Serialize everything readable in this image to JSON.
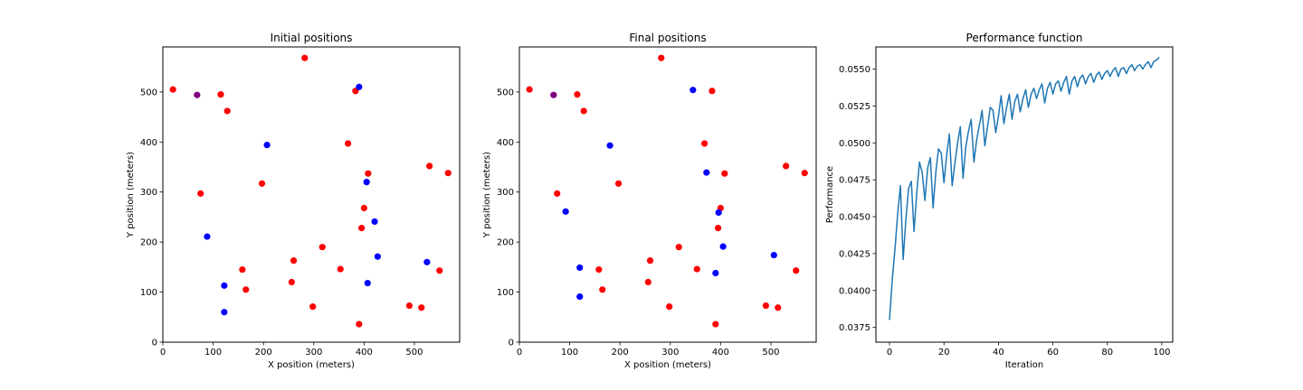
{
  "chart_data": [
    {
      "type": "scatter",
      "title": "Initial positions",
      "xlabel": "X position (meters)",
      "ylabel": "Y position (meters)",
      "xlim": [
        0,
        590
      ],
      "ylim": [
        0,
        590
      ],
      "xticks": [
        0,
        100,
        200,
        300,
        400,
        500
      ],
      "yticks": [
        0,
        100,
        200,
        300,
        400,
        500
      ],
      "grid": false,
      "series": [
        {
          "color": "#ff0000",
          "points": [
            [
              20,
              505
            ],
            [
              115,
              495
            ],
            [
              128,
              462
            ],
            [
              282,
              568
            ],
            [
              383,
              502
            ],
            [
              368,
              397
            ],
            [
              408,
              337
            ],
            [
              530,
              352
            ],
            [
              567,
              338
            ],
            [
              75,
              297
            ],
            [
              197,
              317
            ],
            [
              400,
              268
            ],
            [
              395,
              228
            ],
            [
              317,
              190
            ],
            [
              158,
              145
            ],
            [
              260,
              163
            ],
            [
              353,
              146
            ],
            [
              256,
              120
            ],
            [
              165,
              105
            ],
            [
              298,
              71
            ],
            [
              390,
              36
            ],
            [
              490,
              73
            ],
            [
              514,
              69
            ],
            [
              550,
              143
            ]
          ]
        },
        {
          "color": "#0000ff",
          "points": [
            [
              390,
              510
            ],
            [
              207,
              394
            ],
            [
              405,
              320
            ],
            [
              421,
              241
            ],
            [
              88,
              211
            ],
            [
              427,
              171
            ],
            [
              525,
              160
            ],
            [
              407,
              118
            ],
            [
              122,
              113
            ],
            [
              122,
              60
            ]
          ]
        },
        {
          "color": "#800080",
          "points": [
            [
              68,
              494
            ]
          ]
        }
      ]
    },
    {
      "type": "scatter",
      "title": "Final positions",
      "xlabel": "X position (meters)",
      "ylabel": "Y position (meters)",
      "xlim": [
        0,
        590
      ],
      "ylim": [
        0,
        590
      ],
      "xticks": [
        0,
        100,
        200,
        300,
        400,
        500
      ],
      "yticks": [
        0,
        100,
        200,
        300,
        400,
        500
      ],
      "grid": false,
      "series": [
        {
          "color": "#ff0000",
          "points": [
            [
              20,
              505
            ],
            [
              115,
              495
            ],
            [
              128,
              462
            ],
            [
              282,
              568
            ],
            [
              383,
              502
            ],
            [
              368,
              397
            ],
            [
              408,
              337
            ],
            [
              530,
              352
            ],
            [
              567,
              338
            ],
            [
              75,
              297
            ],
            [
              197,
              317
            ],
            [
              400,
              268
            ],
            [
              395,
              228
            ],
            [
              317,
              190
            ],
            [
              158,
              145
            ],
            [
              260,
              163
            ],
            [
              353,
              146
            ],
            [
              256,
              120
            ],
            [
              165,
              105
            ],
            [
              298,
              71
            ],
            [
              390,
              36
            ],
            [
              490,
              73
            ],
            [
              514,
              69
            ],
            [
              550,
              143
            ]
          ]
        },
        {
          "color": "#0000ff",
          "points": [
            [
              345,
              504
            ],
            [
              180,
              393
            ],
            [
              372,
              339
            ],
            [
              92,
              261
            ],
            [
              396,
              259
            ],
            [
              405,
              191
            ],
            [
              506,
              174
            ],
            [
              120,
              149
            ],
            [
              390,
              138
            ],
            [
              120,
              91
            ]
          ]
        },
        {
          "color": "#800080",
          "points": [
            [
              68,
              494
            ]
          ]
        }
      ]
    },
    {
      "type": "line",
      "title": "Performance function",
      "xlabel": "Iteration",
      "ylabel": "Performance",
      "xlim": [
        -5,
        104
      ],
      "ylim": [
        0.0365,
        0.0565
      ],
      "xticks": [
        0,
        20,
        40,
        60,
        80,
        100
      ],
      "yticks": [
        0.0375,
        0.04,
        0.0425,
        0.045,
        0.0475,
        0.05,
        0.0525,
        0.055
      ],
      "ytick_labels": [
        "0.0375",
        "0.0400",
        "0.0425",
        "0.0450",
        "0.0475",
        "0.0500",
        "0.0525",
        "0.0550"
      ],
      "grid": false,
      "series": [
        {
          "color": "#1f77b4",
          "x": [
            0,
            1,
            2,
            3,
            4,
            5,
            6,
            7,
            8,
            9,
            10,
            11,
            12,
            13,
            14,
            15,
            16,
            17,
            18,
            19,
            20,
            21,
            22,
            23,
            24,
            25,
            26,
            27,
            28,
            29,
            30,
            31,
            32,
            33,
            34,
            35,
            36,
            37,
            38,
            39,
            40,
            41,
            42,
            43,
            44,
            45,
            46,
            47,
            48,
            49,
            50,
            51,
            52,
            53,
            54,
            55,
            56,
            57,
            58,
            59,
            60,
            61,
            62,
            63,
            64,
            65,
            66,
            67,
            68,
            69,
            70,
            71,
            72,
            73,
            74,
            75,
            76,
            77,
            78,
            79,
            80,
            81,
            82,
            83,
            84,
            85,
            86,
            87,
            88,
            89,
            90,
            91,
            92,
            93,
            94,
            95,
            96,
            97,
            98,
            99
          ],
          "y": [
            0.038,
            0.0407,
            0.0428,
            0.0452,
            0.0471,
            0.0421,
            0.0448,
            0.0469,
            0.0474,
            0.044,
            0.0466,
            0.0487,
            0.048,
            0.0461,
            0.0483,
            0.049,
            0.0456,
            0.048,
            0.0496,
            0.0493,
            0.0473,
            0.0492,
            0.0506,
            0.0471,
            0.0486,
            0.05,
            0.0511,
            0.0476,
            0.0497,
            0.0508,
            0.0516,
            0.0487,
            0.0502,
            0.0512,
            0.0522,
            0.0498,
            0.0511,
            0.0524,
            0.0522,
            0.0507,
            0.0518,
            0.0532,
            0.0513,
            0.0524,
            0.0533,
            0.0516,
            0.0528,
            0.0533,
            0.0521,
            0.053,
            0.0536,
            0.0524,
            0.0533,
            0.0537,
            0.053,
            0.0536,
            0.054,
            0.0527,
            0.0537,
            0.0541,
            0.0533,
            0.054,
            0.0542,
            0.0535,
            0.0541,
            0.0545,
            0.0533,
            0.0542,
            0.0545,
            0.0538,
            0.0544,
            0.0546,
            0.054,
            0.0545,
            0.0547,
            0.0541,
            0.0546,
            0.0548,
            0.0543,
            0.0547,
            0.0549,
            0.0545,
            0.0549,
            0.0551,
            0.0545,
            0.055,
            0.0551,
            0.0547,
            0.0551,
            0.0553,
            0.0549,
            0.0552,
            0.0553,
            0.055,
            0.0553,
            0.0555,
            0.0551,
            0.0555,
            0.0556,
            0.0558
          ]
        }
      ]
    }
  ]
}
